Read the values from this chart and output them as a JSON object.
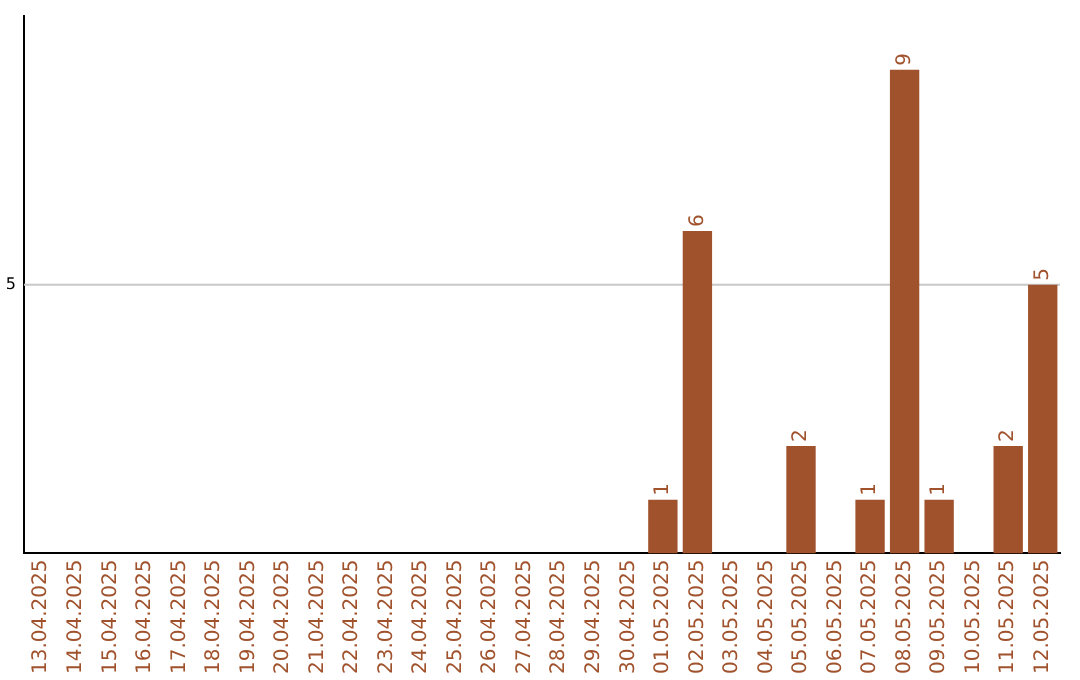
{
  "chart_data": {
    "type": "bar",
    "categories": [
      "13.04.2025",
      "14.04.2025",
      "15.04.2025",
      "16.04.2025",
      "17.04.2025",
      "18.04.2025",
      "19.04.2025",
      "20.04.2025",
      "21.04.2025",
      "22.04.2025",
      "23.04.2025",
      "24.04.2025",
      "25.04.2025",
      "26.04.2025",
      "27.04.2025",
      "28.04.2025",
      "29.04.2025",
      "30.04.2025",
      "01.05.2025",
      "02.05.2025",
      "03.05.2025",
      "04.05.2025",
      "05.05.2025",
      "06.05.2025",
      "07.05.2025",
      "08.05.2025",
      "09.05.2025",
      "10.05.2025",
      "11.05.2025",
      "12.05.2025"
    ],
    "values": [
      null,
      null,
      null,
      null,
      null,
      null,
      null,
      null,
      null,
      null,
      null,
      null,
      null,
      null,
      null,
      null,
      null,
      null,
      1,
      6,
      null,
      null,
      2,
      null,
      1,
      9,
      1,
      null,
      2,
      5
    ],
    "value_labels": [
      null,
      null,
      null,
      null,
      null,
      null,
      null,
      null,
      null,
      null,
      null,
      null,
      null,
      null,
      null,
      null,
      null,
      null,
      "1",
      "6",
      null,
      null,
      "2",
      null,
      "1",
      "9",
      "1",
      null,
      "2",
      "5"
    ],
    "color": "#a0522d",
    "ref_lines": [
      {
        "axis": "y",
        "value": 5,
        "label": "5",
        "color": "#c8c8c8"
      }
    ]
  }
}
